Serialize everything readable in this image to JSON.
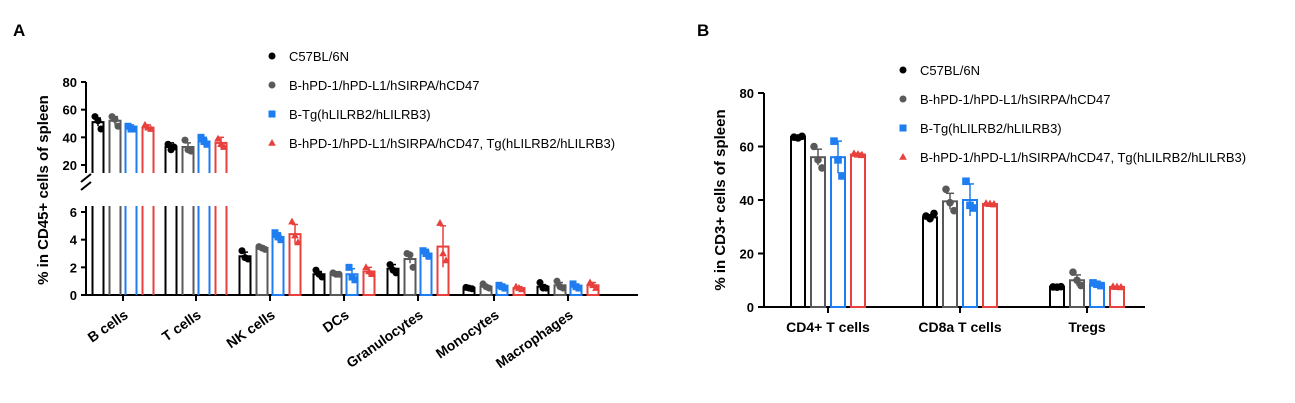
{
  "legend": [
    {
      "label": "C57BL/6N",
      "color": "#000000",
      "marker": "circle"
    },
    {
      "label": "B-hPD-1/hPD-L1/hSIRPA/hCD47",
      "color": "#595959",
      "marker": "circle"
    },
    {
      "label": "B-Tg(hLILRB2/hLILRB3)",
      "color": "#1e7df0",
      "marker": "square"
    },
    {
      "label": "B-hPD-1/hPD-L1/hSIRPA/hCD47, Tg(hLILRB2/hLILRB3)",
      "color": "#e8403c",
      "marker": "triangle"
    }
  ],
  "chart_data": [
    {
      "panel": "A",
      "type": "bar",
      "ylabel": "% in CD45+ cells of spleen",
      "y_axis": {
        "broken": true,
        "lower_range": [
          0,
          6
        ],
        "upper_range": [
          20,
          80
        ],
        "lower_ticks": [
          "0",
          "2",
          "4",
          "6"
        ],
        "upper_ticks": [
          "20",
          "40",
          "60",
          "80"
        ]
      },
      "categories": [
        "B cells",
        "T cells",
        "NK cells",
        "DCs",
        "Granulocytes",
        "Monocytes",
        "Macrophages"
      ],
      "series": [
        {
          "name": "C57BL/6N",
          "color": "#000000",
          "marker": "circle",
          "means": [
            51,
            33,
            2.8,
            1.5,
            1.9,
            0.5,
            0.6
          ],
          "errors": [
            3,
            3,
            0.3,
            0.2,
            0.3,
            0.05,
            0.15
          ],
          "points": [
            [
              55,
              52,
              46
            ],
            [
              35,
              31,
              33
            ],
            [
              3.2,
              2.7,
              2.6
            ],
            [
              1.8,
              1.5,
              1.3
            ],
            [
              2.2,
              1.8,
              1.6
            ],
            [
              0.55,
              0.5,
              0.45
            ],
            [
              0.9,
              0.5,
              0.5
            ]
          ]
        },
        {
          "name": "B-hPD-1/hPD-L1/hSIRPA/hCD47",
          "color": "#595959",
          "marker": "circle",
          "means": [
            52,
            33,
            3.4,
            1.5,
            2.6,
            0.6,
            0.7
          ],
          "errors": [
            3,
            3,
            0.15,
            0.1,
            0.3,
            0.1,
            0.2
          ],
          "points": [
            [
              55,
              53,
              48
            ],
            [
              38,
              31,
              30
            ],
            [
              3.5,
              3.4,
              3.3
            ],
            [
              1.6,
              1.5,
              1.5
            ],
            [
              3.0,
              2.9,
              2.0
            ],
            [
              0.8,
              0.6,
              0.5
            ],
            [
              1.0,
              0.6,
              0.5
            ]
          ]
        },
        {
          "name": "B-Tg(hLILRB2/hLILRB3)",
          "color": "#1e7df0",
          "marker": "square",
          "means": [
            47,
            37,
            4.2,
            1.5,
            3.0,
            0.6,
            0.6
          ],
          "errors": [
            2,
            3,
            0.3,
            0.4,
            0.3,
            0.1,
            0.15
          ],
          "points": [
            [
              48,
              46,
              46
            ],
            [
              40,
              37,
              35
            ],
            [
              4.5,
              4.2,
              4.0
            ],
            [
              2.0,
              1.3,
              1.1
            ],
            [
              3.2,
              3.0,
              2.8
            ],
            [
              0.7,
              0.6,
              0.5
            ],
            [
              0.8,
              0.6,
              0.5
            ]
          ]
        },
        {
          "name": "B-hPD-1/hPD-L1/hSIRPA/hCD47, Tg(hLILRB2/hLILRB3)",
          "color": "#e8403c",
          "marker": "triangle",
          "means": [
            47,
            36,
            4.4,
            1.7,
            3.5,
            0.5,
            0.7
          ],
          "errors": [
            2,
            4,
            0.7,
            0.3,
            1.5,
            0.1,
            0.2
          ],
          "points": [
            [
              49,
              47,
              46
            ],
            [
              39,
              35,
              33
            ],
            [
              5.3,
              4.3,
              3.8
            ],
            [
              2.0,
              1.7,
              1.5
            ],
            [
              5.2,
              3.0,
              2.5
            ],
            [
              0.6,
              0.5,
              0.4
            ],
            [
              0.9,
              0.7,
              0.5
            ]
          ]
        }
      ]
    },
    {
      "panel": "B",
      "type": "bar",
      "ylabel": "% in CD3+ cells of spleen",
      "ylim": [
        0,
        80
      ],
      "y_ticks": [
        "0",
        "20",
        "40",
        "60",
        "80"
      ],
      "categories": [
        "CD4+ T cells",
        "CD8a T cells",
        "Tregs"
      ],
      "series": [
        {
          "name": "C57BL/6N",
          "color": "#000000",
          "marker": "circle",
          "means": [
            63.5,
            33.5,
            7.5
          ],
          "errors": [
            0.4,
            1.0,
            0.2
          ],
          "points": [
            [
              63.5,
              63.2,
              63.8
            ],
            [
              34,
              33,
              35
            ],
            [
              7.5,
              7.4,
              7.6
            ]
          ]
        },
        {
          "name": "B-hPD-1/hPD-L1/hSIRPA/hCD47",
          "color": "#595959",
          "marker": "circle",
          "means": [
            56,
            39.5,
            10
          ],
          "errors": [
            3,
            3,
            2
          ],
          "points": [
            [
              60,
              55,
              52
            ],
            [
              44,
              39,
              36
            ],
            [
              13,
              10,
              8
            ]
          ]
        },
        {
          "name": "B-Tg(hLILRB2/hLILRB3)",
          "color": "#1e7df0",
          "marker": "square",
          "means": [
            56,
            40,
            8.5
          ],
          "errors": [
            6,
            6,
            0.6
          ],
          "points": [
            [
              62,
              55,
              49
            ],
            [
              47,
              38,
              37
            ],
            [
              9,
              8.5,
              8
            ]
          ]
        },
        {
          "name": "B-hPD-1/hPD-L1/hSIRPA/hCD47, Tg(hLILRB2/hLILRB3)",
          "color": "#e8403c",
          "marker": "triangle",
          "means": [
            57,
            38.5,
            7.5
          ],
          "errors": [
            0.5,
            0.3,
            0.2
          ],
          "points": [
            [
              57.3,
              57,
              56.8
            ],
            [
              38.7,
              38.5,
              38.4
            ],
            [
              7.6,
              7.5,
              7.4
            ]
          ]
        }
      ]
    }
  ]
}
